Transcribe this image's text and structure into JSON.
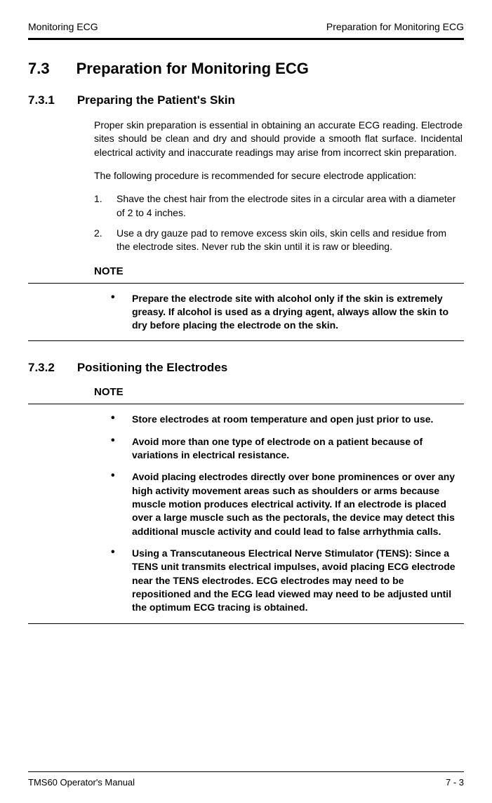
{
  "header": {
    "left": "Monitoring ECG",
    "right": "Preparation for Monitoring ECG"
  },
  "section_main": {
    "number": "7.3",
    "title": "Preparation for Monitoring ECG"
  },
  "sub1": {
    "number": "7.3.1",
    "title": "Preparing the Patient's Skin",
    "p1": "Proper skin preparation is essential in obtaining an accurate ECG reading. Electrode sites should be clean and dry and should provide a smooth flat surface. Incidental electrical activity and inaccurate readings may arise from incorrect skin preparation.",
    "p2": "The following procedure is recommended for secure electrode application:",
    "steps": [
      {
        "n": "1.",
        "t": "Shave the chest hair from the electrode sites in a circular area with a diameter of 2 to 4 inches."
      },
      {
        "n": "2.",
        "t": "Use a dry gauze pad to remove excess skin oils, skin cells and residue from the electrode sites. Never rub the skin until it is raw or bleeding."
      }
    ],
    "note_label": "NOTE",
    "note_items": [
      "Prepare the electrode site with alcohol only if the skin is extremely greasy. If alcohol is used as a drying agent, always allow the skin to dry before placing the electrode on the skin."
    ]
  },
  "sub2": {
    "number": "7.3.2",
    "title": "Positioning the Electrodes",
    "note_label": "NOTE",
    "note_items": [
      "Store electrodes at room temperature and open just prior to use.",
      "Avoid more than one type of electrode on a patient because of variations in electrical resistance.",
      "Avoid placing electrodes directly over bone prominences or over any high activity movement areas such as shoulders or arms because muscle motion produces electrical activity. If an electrode is placed over a large muscle such as the pectorals, the device may detect this additional muscle activity and could lead to false arrhythmia calls.",
      "Using a Transcutaneous Electrical Nerve Stimulator (TENS): Since a TENS unit transmits electrical impulses, avoid placing ECG electrode near the TENS electrodes. ECG electrodes may need to be repositioned and the ECG lead viewed may need to be adjusted until the optimum ECG tracing is obtained."
    ]
  },
  "footer": {
    "left": "TMS60 Operator's Manual",
    "right": "7 - 3"
  }
}
